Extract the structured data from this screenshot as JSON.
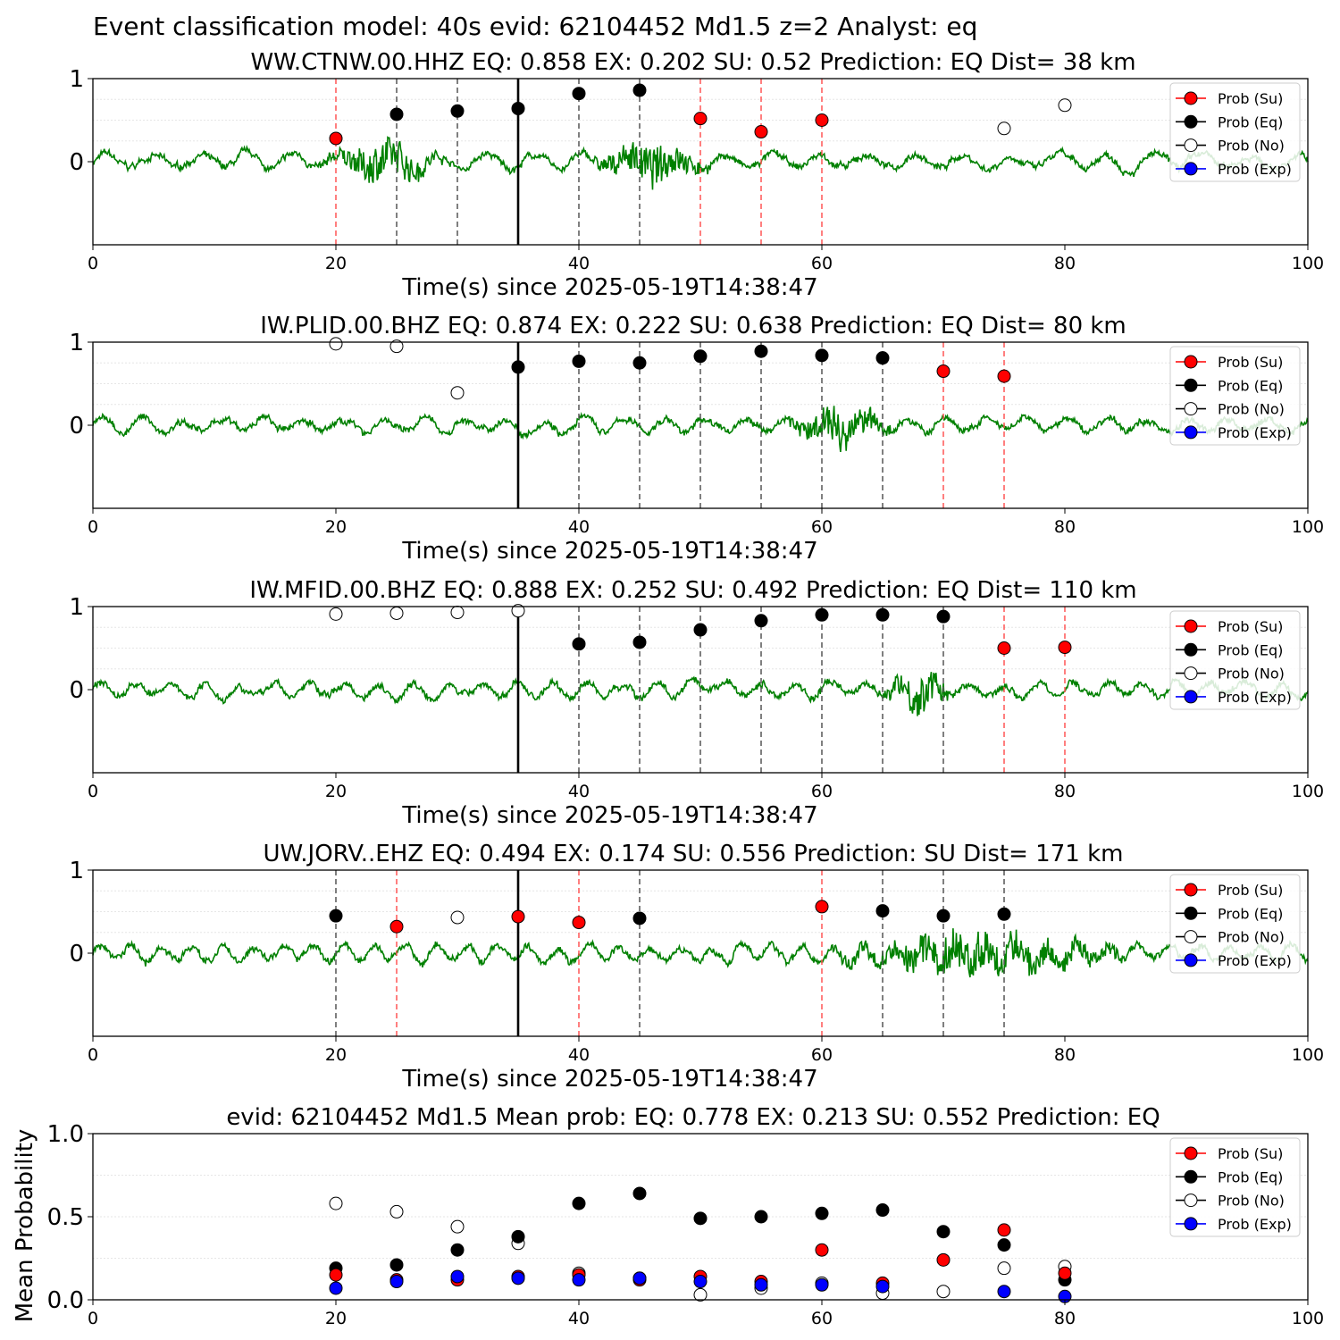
{
  "figure_title": "Event classification model: 40s evid: 62104452 Md1.5 z=2 Analyst: eq",
  "legend": [
    "Prob (Su)",
    "Prob (Eq)",
    "Prob (No)",
    "Prob (Exp)"
  ],
  "colors": {
    "trace": "#008000",
    "su": "#ff0000",
    "eq": "#000000",
    "no": "#ffffff",
    "exp": "#0000ff",
    "su_line": "#ff5555",
    "eq_line": "#555555"
  },
  "chart_data": [
    {
      "type": "scatter",
      "title": "WW.CTNW.00.HHZ   EQ: 0.858  EX: 0.202  SU: 0.52   Prediction: EQ    Dist= 38 km",
      "xlabel": "Time(s) since 2025-05-19T14:38:47",
      "ylabel": "",
      "xlim": [
        0,
        100
      ],
      "ylim": [
        -1,
        1
      ],
      "xticks": [
        0,
        20,
        40,
        60,
        80,
        100
      ],
      "yticks": [
        0,
        1
      ],
      "reference_line_x": 35,
      "trace_signal_segments": [
        [
          19,
          29
        ],
        [
          41,
          51
        ]
      ],
      "points": [
        {
          "x": 20,
          "y": 0.28,
          "class": "su"
        },
        {
          "x": 25,
          "y": 0.57,
          "class": "eq"
        },
        {
          "x": 30,
          "y": 0.61,
          "class": "eq"
        },
        {
          "x": 35,
          "y": 0.64,
          "class": "eq"
        },
        {
          "x": 40,
          "y": 0.82,
          "class": "eq"
        },
        {
          "x": 45,
          "y": 0.86,
          "class": "eq"
        },
        {
          "x": 50,
          "y": 0.52,
          "class": "su"
        },
        {
          "x": 55,
          "y": 0.36,
          "class": "su"
        },
        {
          "x": 60,
          "y": 0.5,
          "class": "su"
        },
        {
          "x": 75,
          "y": 0.4,
          "class": "no"
        },
        {
          "x": 80,
          "y": 0.68,
          "class": "no"
        }
      ]
    },
    {
      "type": "scatter",
      "title": "IW.PLID.00.BHZ   EQ: 0.874  EX: 0.222  SU: 0.638   Prediction: EQ    Dist= 80 km",
      "xlabel": "Time(s) since 2025-05-19T14:38:47",
      "ylabel": "",
      "xlim": [
        0,
        100
      ],
      "ylim": [
        -1,
        1
      ],
      "xticks": [
        0,
        20,
        40,
        60,
        80,
        100
      ],
      "yticks": [
        0,
        1
      ],
      "reference_line_x": 35,
      "trace_signal_segments": [
        [
          57,
          66
        ]
      ],
      "points": [
        {
          "x": 20,
          "y": 0.98,
          "class": "no"
        },
        {
          "x": 25,
          "y": 0.95,
          "class": "no"
        },
        {
          "x": 30,
          "y": 0.39,
          "class": "no"
        },
        {
          "x": 35,
          "y": 0.7,
          "class": "eq"
        },
        {
          "x": 40,
          "y": 0.77,
          "class": "eq"
        },
        {
          "x": 45,
          "y": 0.75,
          "class": "eq"
        },
        {
          "x": 50,
          "y": 0.83,
          "class": "eq"
        },
        {
          "x": 55,
          "y": 0.89,
          "class": "eq"
        },
        {
          "x": 60,
          "y": 0.84,
          "class": "eq"
        },
        {
          "x": 65,
          "y": 0.81,
          "class": "eq"
        },
        {
          "x": 70,
          "y": 0.65,
          "class": "su"
        },
        {
          "x": 75,
          "y": 0.59,
          "class": "su"
        }
      ]
    },
    {
      "type": "scatter",
      "title": "IW.MFID.00.BHZ   EQ: 0.888  EX: 0.252  SU: 0.492   Prediction: EQ    Dist= 110 km",
      "xlabel": "Time(s) since 2025-05-19T14:38:47",
      "ylabel": "",
      "xlim": [
        0,
        100
      ],
      "ylim": [
        -1,
        1
      ],
      "xticks": [
        0,
        20,
        40,
        60,
        80,
        100
      ],
      "yticks": [
        0,
        1
      ],
      "reference_line_x": 35,
      "trace_signal_segments": [
        [
          65,
          71
        ]
      ],
      "points": [
        {
          "x": 20,
          "y": 0.91,
          "class": "no"
        },
        {
          "x": 25,
          "y": 0.92,
          "class": "no"
        },
        {
          "x": 30,
          "y": 0.93,
          "class": "no"
        },
        {
          "x": 35,
          "y": 0.95,
          "class": "no"
        },
        {
          "x": 40,
          "y": 0.55,
          "class": "eq"
        },
        {
          "x": 45,
          "y": 0.57,
          "class": "eq"
        },
        {
          "x": 50,
          "y": 0.72,
          "class": "eq"
        },
        {
          "x": 55,
          "y": 0.83,
          "class": "eq"
        },
        {
          "x": 60,
          "y": 0.9,
          "class": "eq"
        },
        {
          "x": 65,
          "y": 0.9,
          "class": "eq"
        },
        {
          "x": 70,
          "y": 0.88,
          "class": "eq"
        },
        {
          "x": 75,
          "y": 0.5,
          "class": "su"
        },
        {
          "x": 80,
          "y": 0.51,
          "class": "su"
        }
      ]
    },
    {
      "type": "scatter",
      "title": "UW.JORV..EHZ   EQ: 0.494  EX: 0.174  SU: 0.556   Prediction: SU    Dist= 171 km",
      "xlabel": "Time(s) since 2025-05-19T14:38:47",
      "ylabel": "",
      "xlim": [
        0,
        100
      ],
      "ylim": [
        -1,
        1
      ],
      "xticks": [
        0,
        20,
        40,
        60,
        80,
        100
      ],
      "yticks": [
        0,
        1
      ],
      "reference_line_x": 35,
      "trace_signal_segments": [
        [
          60,
          86
        ]
      ],
      "points": [
        {
          "x": 20,
          "y": 0.45,
          "class": "eq"
        },
        {
          "x": 25,
          "y": 0.32,
          "class": "su"
        },
        {
          "x": 30,
          "y": 0.43,
          "class": "no"
        },
        {
          "x": 35,
          "y": 0.44,
          "class": "su"
        },
        {
          "x": 40,
          "y": 0.37,
          "class": "su"
        },
        {
          "x": 45,
          "y": 0.42,
          "class": "eq"
        },
        {
          "x": 60,
          "y": 0.56,
          "class": "su"
        },
        {
          "x": 65,
          "y": 0.51,
          "class": "eq"
        },
        {
          "x": 70,
          "y": 0.45,
          "class": "eq"
        },
        {
          "x": 75,
          "y": 0.47,
          "class": "eq"
        }
      ]
    },
    {
      "type": "scatter",
      "title": "evid: 62104452  Md1.5   Mean prob:   EQ: 0.778  EX: 0.213  SU: 0.552   Prediction: EQ",
      "xlabel": "",
      "ylabel": "Mean Probability",
      "xlim": [
        0,
        100
      ],
      "ylim": [
        0,
        1
      ],
      "xticks": [
        0,
        20,
        40,
        60,
        80,
        100
      ],
      "yticks": [
        "0.0",
        "0.5",
        "1.0"
      ],
      "series": [
        {
          "class": "no",
          "x": [
            20,
            25,
            30,
            35,
            40,
            45,
            50,
            55,
            60,
            65,
            70,
            75,
            80
          ],
          "values": [
            0.58,
            0.53,
            0.44,
            0.34,
            0.16,
            0.13,
            0.03,
            0.07,
            0.1,
            0.04,
            0.05,
            0.19,
            0.2
          ]
        },
        {
          "class": "eq",
          "x": [
            20,
            25,
            30,
            35,
            40,
            45,
            50,
            55,
            60,
            65,
            70,
            75,
            80
          ],
          "values": [
            0.19,
            0.21,
            0.3,
            0.38,
            0.58,
            0.64,
            0.49,
            0.5,
            0.52,
            0.54,
            0.41,
            0.33,
            0.12
          ]
        },
        {
          "class": "su",
          "x": [
            20,
            25,
            30,
            35,
            40,
            45,
            50,
            55,
            60,
            65,
            70,
            75,
            80
          ],
          "values": [
            0.15,
            0.12,
            0.12,
            0.14,
            0.15,
            0.12,
            0.14,
            0.11,
            0.3,
            0.1,
            0.24,
            0.42,
            0.16
          ]
        },
        {
          "class": "exp",
          "x": [
            20,
            25,
            30,
            35,
            40,
            45,
            50,
            55,
            60,
            65,
            75,
            80
          ],
          "values": [
            0.07,
            0.11,
            0.14,
            0.13,
            0.12,
            0.13,
            0.11,
            0.09,
            0.09,
            0.08,
            0.05,
            0.02
          ]
        }
      ]
    }
  ]
}
